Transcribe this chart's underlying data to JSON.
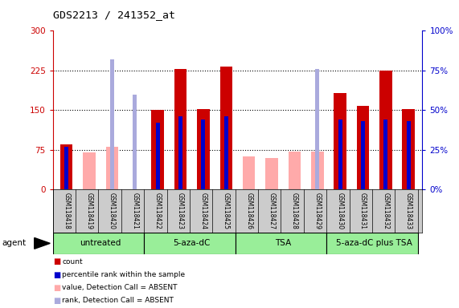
{
  "title": "GDS2213 / 241352_at",
  "samples": [
    "GSM118418",
    "GSM118419",
    "GSM118420",
    "GSM118421",
    "GSM118422",
    "GSM118423",
    "GSM118424",
    "GSM118425",
    "GSM118426",
    "GSM118427",
    "GSM118428",
    "GSM118429",
    "GSM118430",
    "GSM118431",
    "GSM118432",
    "GSM118433"
  ],
  "count_values": [
    85,
    0,
    0,
    0,
    150,
    228,
    152,
    232,
    0,
    0,
    0,
    0,
    183,
    158,
    225,
    152
  ],
  "rank_values": [
    27,
    0,
    0,
    0,
    42,
    46,
    44,
    46,
    0,
    0,
    0,
    0,
    44,
    43,
    44,
    43
  ],
  "absent_value": [
    0,
    70,
    80,
    0,
    0,
    0,
    0,
    0,
    63,
    60,
    72,
    72,
    0,
    0,
    0,
    0
  ],
  "absent_rank": [
    0,
    0,
    82,
    60,
    0,
    0,
    0,
    0,
    0,
    0,
    0,
    76,
    0,
    0,
    0,
    0
  ],
  "is_absent": [
    false,
    true,
    true,
    true,
    false,
    false,
    false,
    false,
    true,
    true,
    true,
    true,
    false,
    false,
    false,
    false
  ],
  "groups": [
    {
      "label": "untreated",
      "start": 0,
      "end": 3
    },
    {
      "label": "5-aza-dC",
      "start": 4,
      "end": 7
    },
    {
      "label": "TSA",
      "start": 8,
      "end": 11
    },
    {
      "label": "5-aza-dC plus TSA",
      "start": 12,
      "end": 15
    }
  ],
  "ylim_left": [
    0,
    300
  ],
  "ylim_right": [
    0,
    100
  ],
  "yticks_left": [
    0,
    75,
    150,
    225,
    300
  ],
  "yticks_right": [
    0,
    25,
    50,
    75,
    100
  ],
  "bar_width": 0.55,
  "rank_bar_width": 0.18,
  "count_color": "#cc0000",
  "rank_color": "#0000cc",
  "absent_value_color": "#ffaaaa",
  "absent_rank_color": "#aaaadd",
  "plot_bg_color": "#ffffff",
  "axis_left_color": "#cc0000",
  "axis_right_color": "#0000cc",
  "sample_bg_color": "#cccccc",
  "group_color": "#99ee99",
  "legend_items": [
    {
      "color": "#cc0000",
      "label": "count"
    },
    {
      "color": "#0000cc",
      "label": "percentile rank within the sample"
    },
    {
      "color": "#ffaaaa",
      "label": "value, Detection Call = ABSENT"
    },
    {
      "color": "#aaaadd",
      "label": "rank, Detection Call = ABSENT"
    }
  ]
}
